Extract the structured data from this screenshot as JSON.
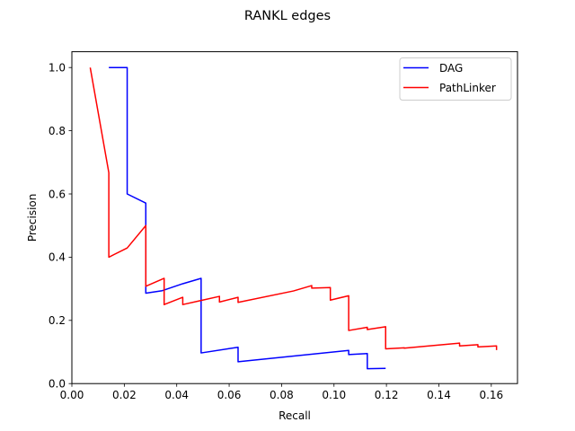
{
  "chart_data": {
    "type": "line",
    "title": "RANKL edges",
    "xlabel": "Recall",
    "ylabel": "Precision",
    "xlim": [
      0.0,
      0.17
    ],
    "ylim": [
      0.0,
      1.05
    ],
    "xticks": [
      "0.00",
      "0.02",
      "0.04",
      "0.06",
      "0.08",
      "0.10",
      "0.12",
      "0.14",
      "0.16"
    ],
    "yticks": [
      "0.0",
      "0.2",
      "0.4",
      "0.6",
      "0.8",
      "1.0"
    ],
    "grid": false,
    "legend_position": "top-right",
    "series": [
      {
        "name": "DAG",
        "color": "#0000ff",
        "x": [
          0.0141,
          0.0211,
          0.0211,
          0.0282,
          0.0282,
          0.0345,
          0.0423,
          0.0493,
          0.0493,
          0.0634,
          0.0634,
          0.1056,
          0.1056,
          0.1127,
          0.1127,
          0.1197
        ],
        "y": [
          1.0,
          1.0,
          0.6,
          0.571,
          0.286,
          0.294,
          0.316,
          0.333,
          0.097,
          0.115,
          0.069,
          0.105,
          0.092,
          0.095,
          0.047,
          0.048
        ]
      },
      {
        "name": "PathLinker",
        "color": "#ff0000",
        "x": [
          0.007,
          0.0141,
          0.0141,
          0.0211,
          0.0282,
          0.0282,
          0.0352,
          0.0352,
          0.0423,
          0.0423,
          0.0493,
          0.0563,
          0.0563,
          0.0634,
          0.0634,
          0.0845,
          0.0915,
          0.0915,
          0.0986,
          0.0986,
          0.1056,
          0.1056,
          0.1127,
          0.1127,
          0.1197,
          0.1197,
          0.1268,
          0.1268,
          0.1479,
          0.1479,
          0.1549,
          0.1549,
          0.162,
          0.162
        ],
        "y": [
          1.0,
          0.667,
          0.4,
          0.429,
          0.5,
          0.308,
          0.333,
          0.25,
          0.273,
          0.25,
          0.263,
          0.276,
          0.258,
          0.273,
          0.257,
          0.293,
          0.31,
          0.302,
          0.304,
          0.264,
          0.278,
          0.168,
          0.178,
          0.171,
          0.18,
          0.11,
          0.113,
          0.112,
          0.128,
          0.119,
          0.123,
          0.116,
          0.119,
          0.106
        ]
      }
    ]
  }
}
